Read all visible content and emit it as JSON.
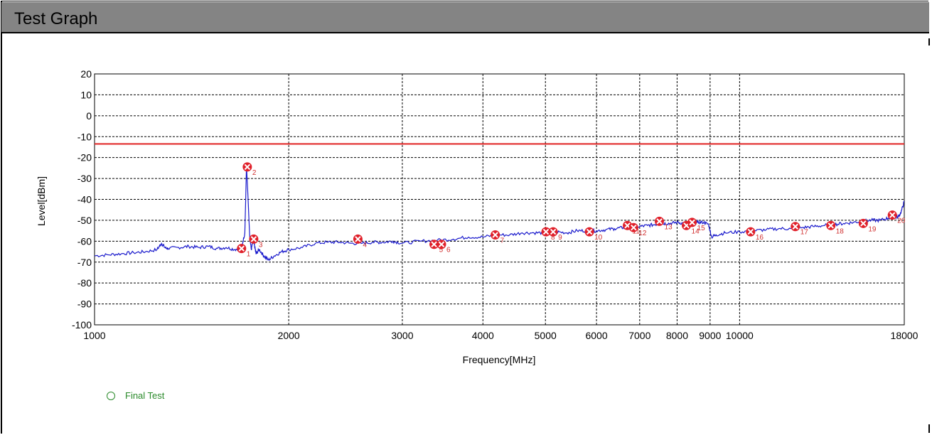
{
  "window": {
    "title": "Test Graph"
  },
  "colors": {
    "trace": "#1a1acc",
    "limit": "#e02020",
    "marker": "#e0202a",
    "marker_label": "#d03030",
    "legend": "#2a8a2a"
  },
  "legend": {
    "entries": [
      {
        "label": "Final Test",
        "icon": "circle-icon"
      }
    ]
  },
  "chart_data": {
    "type": "line",
    "title": "",
    "xlabel": "Frequency[MHz]",
    "ylabel": "Level[dBm]",
    "x_scale": "log",
    "xlim": [
      1000,
      18000
    ],
    "ylim": [
      -100,
      20
    ],
    "grid": true,
    "x_ticks": [
      1000,
      2000,
      3000,
      4000,
      5000,
      6000,
      7000,
      8000,
      9000,
      10000,
      18000
    ],
    "x_tick_labels": [
      "1000",
      "2000",
      "3000",
      "4000",
      "5000",
      "6000",
      "7000",
      "8000",
      "9000",
      "10000",
      "18000"
    ],
    "y_ticks": [
      20,
      10,
      0,
      -10,
      -20,
      -30,
      -40,
      -50,
      -60,
      -70,
      -80,
      -90,
      -100
    ],
    "y_tick_labels": [
      "20",
      "10",
      "0",
      "-10",
      "-20",
      "-30",
      "-40",
      "-50",
      "-60",
      "-70",
      "-80",
      "-90",
      "-100"
    ],
    "limit_line": {
      "y": -13.5
    },
    "series": [
      {
        "x": [
          1000,
          1050,
          1100,
          1150,
          1200,
          1250,
          1270,
          1285,
          1300,
          1350,
          1400,
          1450,
          1500,
          1550,
          1600,
          1650,
          1690,
          1710,
          1720,
          1730,
          1740,
          1750,
          1760,
          1770,
          1780,
          1800,
          1830,
          1860,
          1900,
          1950,
          2000,
          2100,
          2200,
          2300,
          2400,
          2500,
          2600,
          2700,
          2800,
          2900,
          3000,
          3200,
          3400,
          3600,
          3800,
          4000,
          4200,
          4400,
          4600,
          4800,
          5000,
          5200,
          5400,
          5600,
          5800,
          6000,
          6200,
          6400,
          6600,
          6800,
          7000,
          7200,
          7400,
          7600,
          7800,
          8000,
          8200,
          8400,
          8600,
          8800,
          8950,
          9050,
          9200,
          9500,
          10000,
          10500,
          11000,
          11500,
          12000,
          12500,
          13000,
          13500,
          14000,
          14500,
          15000,
          15500,
          16000,
          16500,
          17000,
          17300,
          17600,
          17800,
          18000
        ],
        "values": [
          -67,
          -66.5,
          -66,
          -65.5,
          -65,
          -64,
          -61,
          -63,
          -63.5,
          -63,
          -62.5,
          -63,
          -62.5,
          -63.5,
          -63,
          -64,
          -63,
          -56,
          -24,
          -40,
          -58,
          -64,
          -60,
          -62,
          -66,
          -64,
          -67,
          -69,
          -67,
          -65,
          -64,
          -63,
          -61,
          -60.5,
          -60.5,
          -61,
          -61,
          -60.5,
          -60.5,
          -60,
          -61,
          -60,
          -59.5,
          -59,
          -58,
          -58,
          -57,
          -57,
          -56,
          -56,
          -56,
          -55.5,
          -56,
          -55,
          -55,
          -55,
          -54.5,
          -54,
          -53.5,
          -53,
          -53,
          -52.5,
          -52,
          -51.5,
          -51.5,
          -51,
          -51.5,
          -52,
          -51,
          -51,
          -52,
          -58,
          -57,
          -56,
          -55.5,
          -55,
          -54.5,
          -54,
          -54,
          -53.5,
          -53,
          -52.5,
          -52,
          -51.5,
          -51,
          -50.5,
          -50,
          -50,
          -49,
          -48.5,
          -48.5,
          -46,
          -41
        ]
      }
    ],
    "markers": [
      {
        "label": "1",
        "x": 1690,
        "y": -63.5
      },
      {
        "label": "2",
        "x": 1725,
        "y": -24.5
      },
      {
        "label": "3",
        "x": 1765,
        "y": -59
      },
      {
        "label": "4",
        "x": 2560,
        "y": -59
      },
      {
        "label": "5",
        "x": 3360,
        "y": -61.5
      },
      {
        "label": "6",
        "x": 3450,
        "y": -61.5
      },
      {
        "label": "7",
        "x": 4180,
        "y": -57
      },
      {
        "label": "8",
        "x": 5010,
        "y": -55.5
      },
      {
        "label": "9",
        "x": 5140,
        "y": -55.5
      },
      {
        "label": "10",
        "x": 5850,
        "y": -55.5
      },
      {
        "label": "11",
        "x": 6700,
        "y": -52.5
      },
      {
        "label": "12",
        "x": 6850,
        "y": -53.5
      },
      {
        "label": "13",
        "x": 7510,
        "y": -50.5
      },
      {
        "label": "14",
        "x": 8270,
        "y": -52.5
      },
      {
        "label": "15",
        "x": 8440,
        "y": -51
      },
      {
        "label": "16",
        "x": 10400,
        "y": -55.5
      },
      {
        "label": "17",
        "x": 12200,
        "y": -53
      },
      {
        "label": "18",
        "x": 13850,
        "y": -52.5
      },
      {
        "label": "19",
        "x": 15550,
        "y": -51.5
      },
      {
        "label": "20",
        "x": 17250,
        "y": -47.5
      }
    ]
  }
}
